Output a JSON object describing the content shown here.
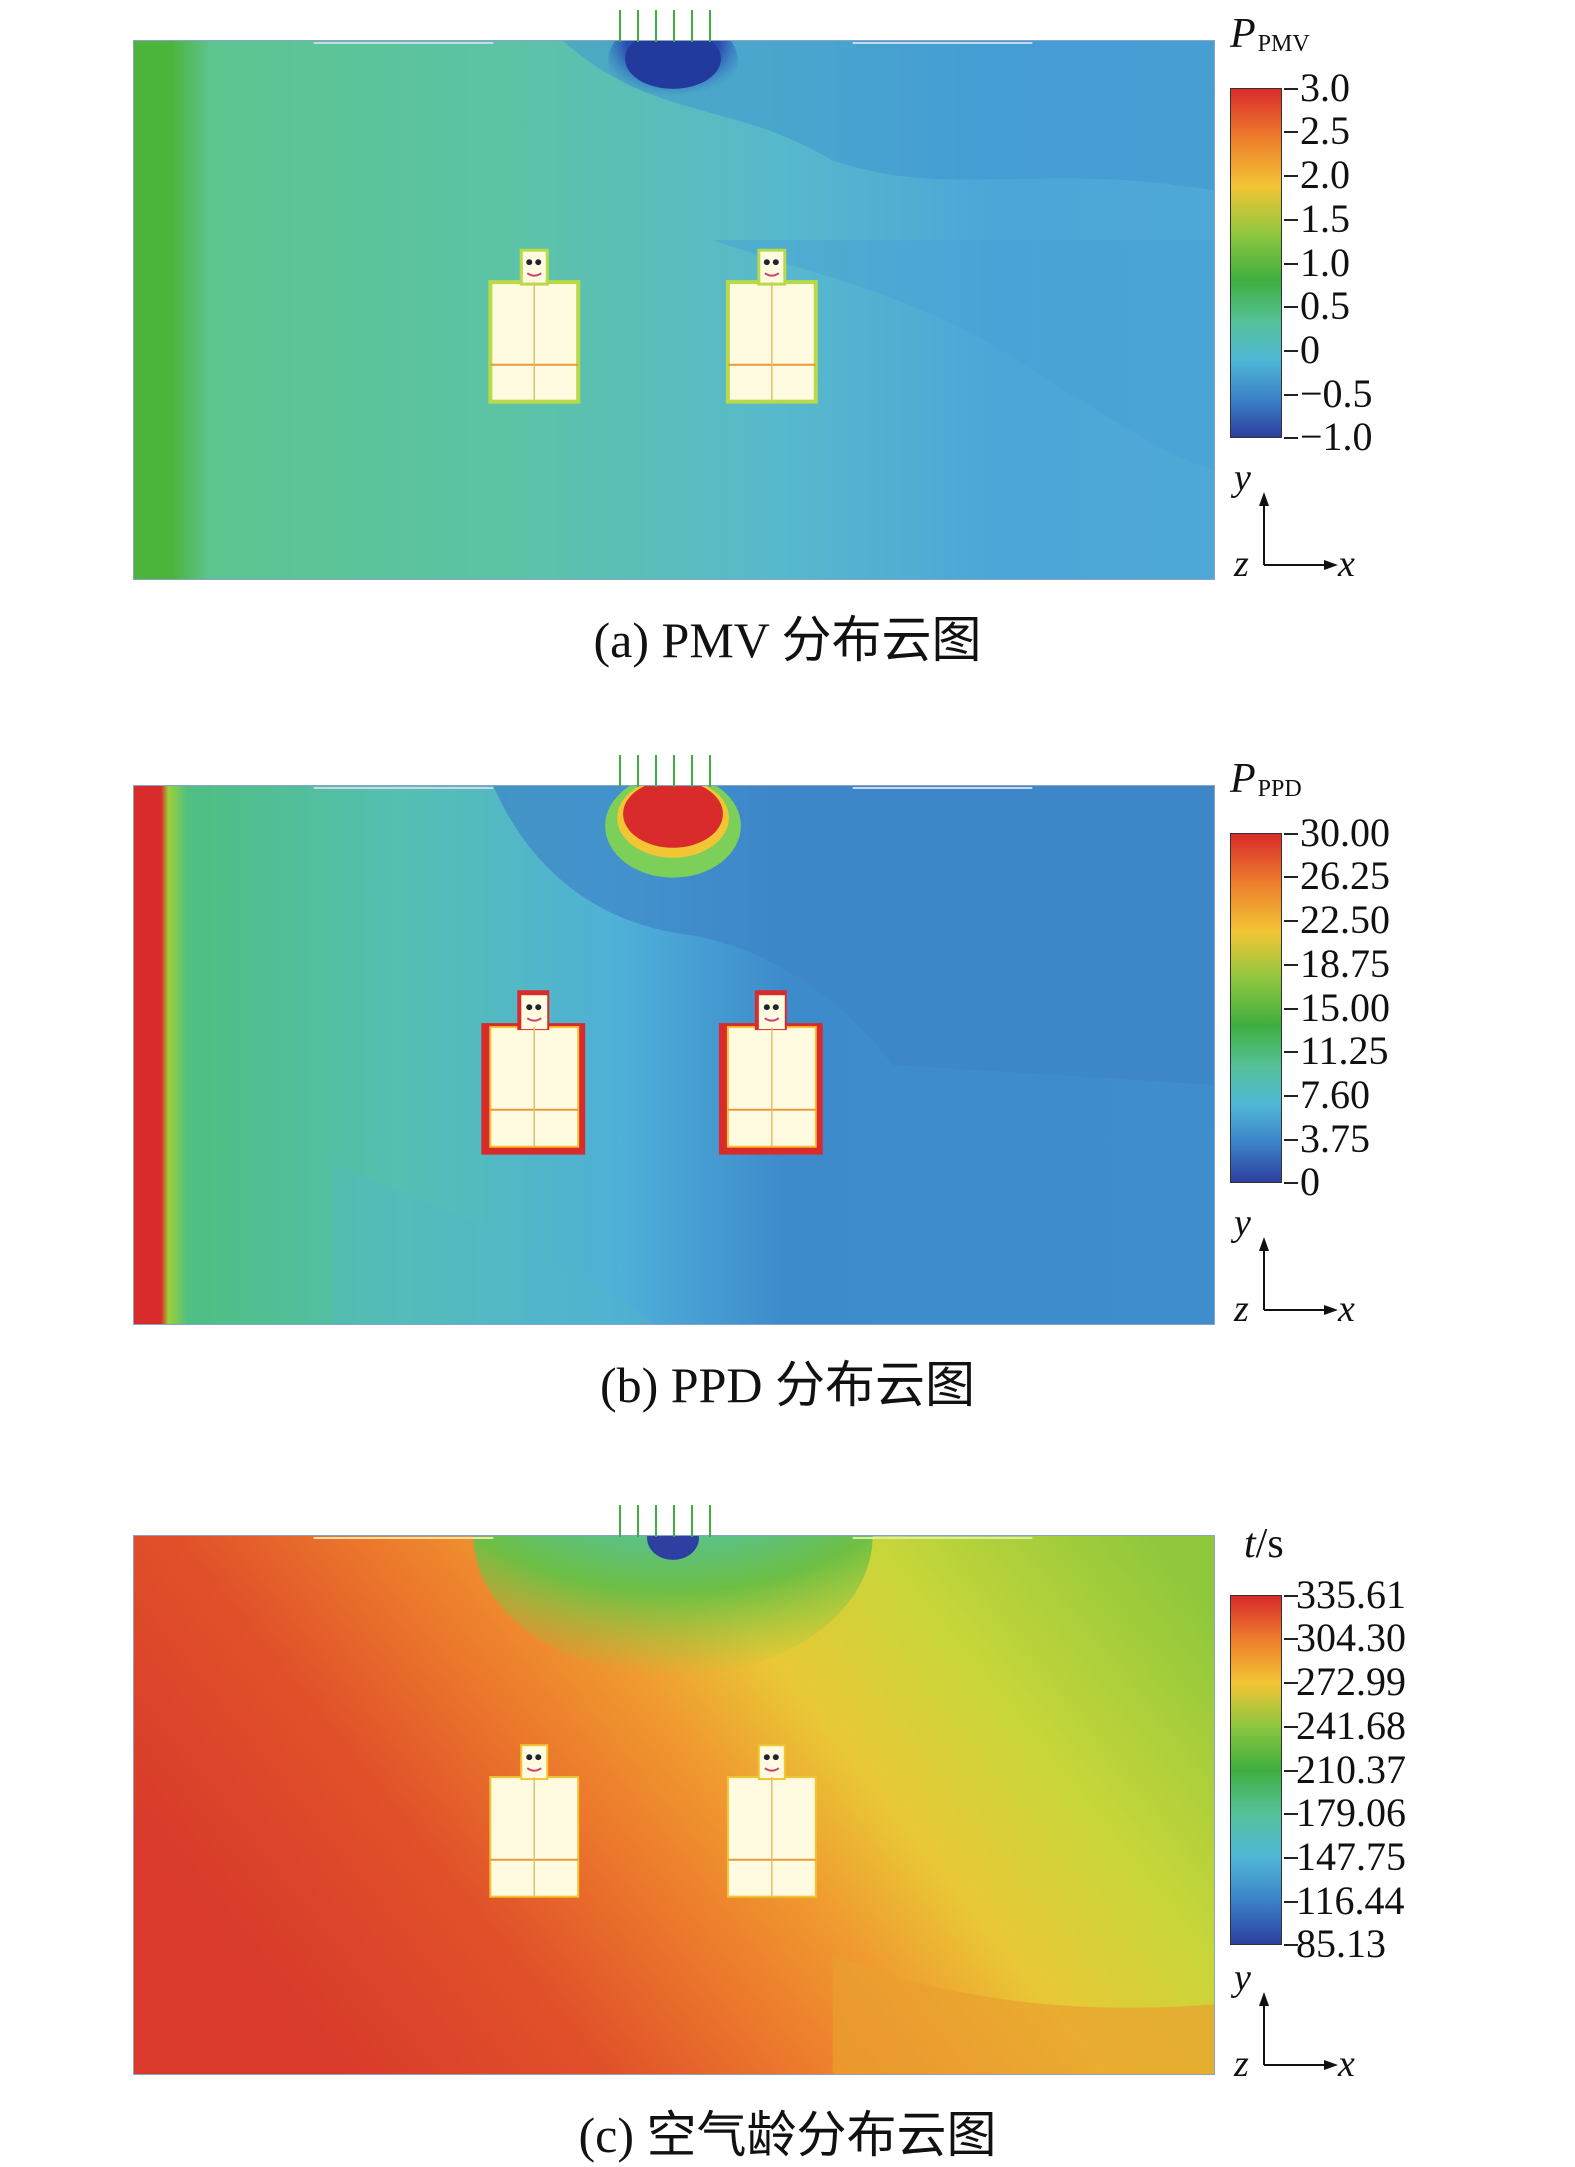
{
  "panels": [
    {
      "id": "a",
      "caption": "(a) PMV 分布云图",
      "legend": {
        "title_main": "P",
        "title_sub": "PMV",
        "ticks": [
          "3.0",
          "2.5",
          "2.0",
          "1.5",
          "1.0",
          "0.5",
          "0",
          "−0.5",
          "−1.0"
        ],
        "colors": [
          "#d92b2b",
          "#ee7d2c",
          "#f2c534",
          "#8cc63f",
          "#3fae3f",
          "#55c29a",
          "#4fb6d6",
          "#3b82c8",
          "#2d3fa0"
        ]
      },
      "axes": {
        "y": "y",
        "z": "z",
        "x": "x"
      }
    },
    {
      "id": "b",
      "caption": "(b) PPD 分布云图",
      "legend": {
        "title_main": "P",
        "title_sub": "PPD",
        "ticks": [
          "30.00",
          "26.25",
          "22.50",
          "18.75",
          "15.00",
          "11.25",
          "7.60",
          "3.75",
          "0"
        ],
        "colors": [
          "#d92b2b",
          "#ee7d2c",
          "#f2c534",
          "#8cc63f",
          "#3fae3f",
          "#55c29a",
          "#4fb6d6",
          "#3b82c8",
          "#2d3fa0"
        ]
      },
      "axes": {
        "y": "y",
        "z": "z",
        "x": "x"
      }
    },
    {
      "id": "c",
      "caption": "(c) 空气龄分布云图",
      "legend": {
        "title_main": "t",
        "title_sub": "/s",
        "ticks": [
          "335.61",
          "304.30",
          "272.99",
          "241.68",
          "210.37",
          "179.06",
          "147.75",
          "116.44",
          "85.13"
        ],
        "colors": [
          "#d92b2b",
          "#ee7d2c",
          "#f2c534",
          "#8cc63f",
          "#3fae3f",
          "#55c29a",
          "#4fb6d6",
          "#3b82c8",
          "#2d3fa0"
        ]
      },
      "axes": {
        "y": "y",
        "z": "z",
        "x": "x"
      }
    }
  ]
}
